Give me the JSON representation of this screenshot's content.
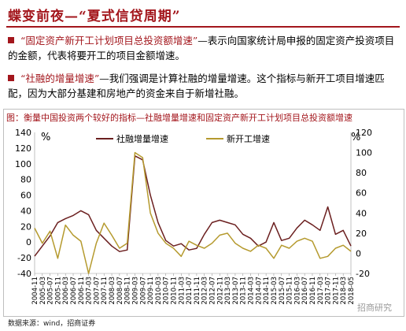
{
  "slide": {
    "title": "蝶变前夜—“夏式信贷周期”",
    "bullet1_key": "“固定资产新开工计划项目总投资额增速”",
    "bullet1_rest": "—表示向国家统计局申报的固定资产投资项目的金额，代表将要开工的项目金额增速。",
    "bullet2_key": "“社融的增量增速”",
    "bullet2_rest": "—我们强调是计算社融的增量增速。这个指标与新开工项目增速匹配，因为大部分基建和房地产的资金来自于新增社融。",
    "source": "数据来源：wind，招商证券",
    "watermark": "招商研究"
  },
  "chart_data": {
    "type": "line",
    "title": "图：衡量中国投资两个较好的指标—社融增量增速和固定资产新开工计划项目总投资额增速",
    "left_unit": "%",
    "right_unit": "%",
    "left_axis": {
      "min": -40,
      "max": 140,
      "ticks": [
        -40,
        -20,
        0,
        20,
        40,
        60,
        80,
        100,
        120,
        140
      ]
    },
    "right_axis": {
      "min": -20,
      "max": 120,
      "ticks": [
        -20,
        0,
        20,
        40,
        60,
        80,
        100,
        120
      ]
    },
    "categories": [
      "2004-11",
      "2005-03",
      "2005-07",
      "2005-11",
      "2006-03",
      "2006-07",
      "2006-11",
      "2007-03",
      "2007-07",
      "2007-11",
      "2008-03",
      "2008-07",
      "2008-11",
      "2009-03",
      "2009-07",
      "2009-11",
      "2010-03",
      "2010-07",
      "2010-11",
      "2011-03",
      "2011-07",
      "2011-11",
      "2012-03",
      "2012-07",
      "2012-11",
      "2013-03",
      "2013-07",
      "2013-11",
      "2014-03",
      "2014-07",
      "2014-11",
      "2015-03",
      "2015-07",
      "2015-11",
      "2016-03",
      "2016-07",
      "2016-11",
      "2017-03",
      "2017-07",
      "2017-11",
      "2018-03",
      "2018-05"
    ],
    "legend_position": "top",
    "series": [
      {
        "name": "社融增量增速",
        "axis": "left",
        "color": "#6b1f1f",
        "values": [
          -18,
          -5,
          8,
          25,
          30,
          34,
          40,
          35,
          15,
          5,
          -5,
          -12,
          -10,
          110,
          105,
          60,
          25,
          2,
          -5,
          -2,
          -10,
          -8,
          10,
          25,
          28,
          25,
          22,
          10,
          5,
          -5,
          0,
          25,
          2,
          5,
          18,
          28,
          22,
          15,
          45,
          10,
          15,
          -5
        ]
      },
      {
        "name": "新开工增速",
        "axis": "right",
        "color": "#b59a2e",
        "values": [
          25,
          10,
          22,
          -5,
          28,
          18,
          12,
          -20,
          10,
          30,
          18,
          5,
          10,
          100,
          95,
          40,
          20,
          10,
          5,
          -3,
          12,
          8,
          5,
          10,
          18,
          20,
          10,
          5,
          2,
          8,
          5,
          -5,
          8,
          5,
          12,
          15,
          12,
          -5,
          -3,
          5,
          8,
          2
        ]
      }
    ]
  }
}
